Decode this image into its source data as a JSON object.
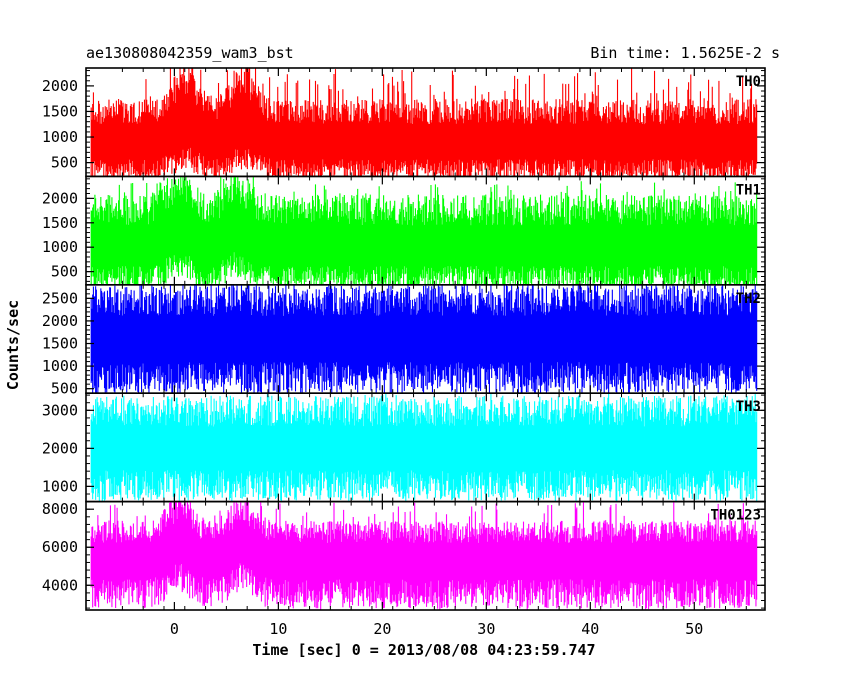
{
  "chart_data": {
    "type": "line",
    "title_left": "ae130808042359_wam3_bst",
    "title_right": "Bin time: 1.5625E-2 s",
    "xlabel": "Time [sec] 0 = 2013/08/08 04:23:59.747",
    "ylabel": "Counts/sec",
    "xlim": [
      -8.5,
      56.8
    ],
    "x_range": [
      -8.0,
      56.0
    ],
    "x_ticks": [
      0,
      10,
      20,
      30,
      40,
      50
    ],
    "grid": false,
    "legend": "none",
    "panels": [
      {
        "name": "TH0",
        "color": "#ff0000",
        "ylim": [
          230,
          2350
        ],
        "y_ticks": [
          500,
          1000,
          1500,
          2000
        ],
        "baseline": 900,
        "envelope_low": 380,
        "envelope_high": 1450,
        "spike_max": 2350,
        "burst_peaks": [
          {
            "x": 1.0,
            "y": 2350
          },
          {
            "x": 6.5,
            "y": 2300
          }
        ]
      },
      {
        "name": "TH1",
        "color": "#00ff00",
        "ylim": [
          230,
          2450
        ],
        "y_ticks": [
          500,
          1000,
          1500,
          2000
        ],
        "baseline": 1000,
        "envelope_low": 400,
        "envelope_high": 1700,
        "spike_max": 2350,
        "burst_peaks": [
          {
            "x": 0.5,
            "y": 2350
          },
          {
            "x": 6.0,
            "y": 2300
          }
        ]
      },
      {
        "name": "TH2",
        "color": "#0000ff",
        "ylim": [
          400,
          2800
        ],
        "y_ticks": [
          500,
          1000,
          1500,
          2000,
          2500
        ],
        "baseline": 1600,
        "envelope_low": 800,
        "envelope_high": 2400,
        "spike_max": 2800,
        "burst_peaks": []
      },
      {
        "name": "TH3",
        "color": "#00ffff",
        "ylim": [
          600,
          3450
        ],
        "y_ticks": [
          1000,
          2000,
          3000
        ],
        "baseline": 2000,
        "envelope_low": 1100,
        "envelope_high": 2900,
        "spike_max": 3450,
        "burst_peaks": []
      },
      {
        "name": "TH0123",
        "color": "#ff00ff",
        "ylim": [
          2700,
          8400
        ],
        "y_ticks": [
          4000,
          6000,
          8000
        ],
        "baseline": 5400,
        "envelope_low": 3700,
        "envelope_high": 6700,
        "spike_max": 8400,
        "burst_peaks": [
          {
            "x": 0.5,
            "y": 8400
          },
          {
            "x": 6.5,
            "y": 8100
          }
        ]
      }
    ]
  }
}
